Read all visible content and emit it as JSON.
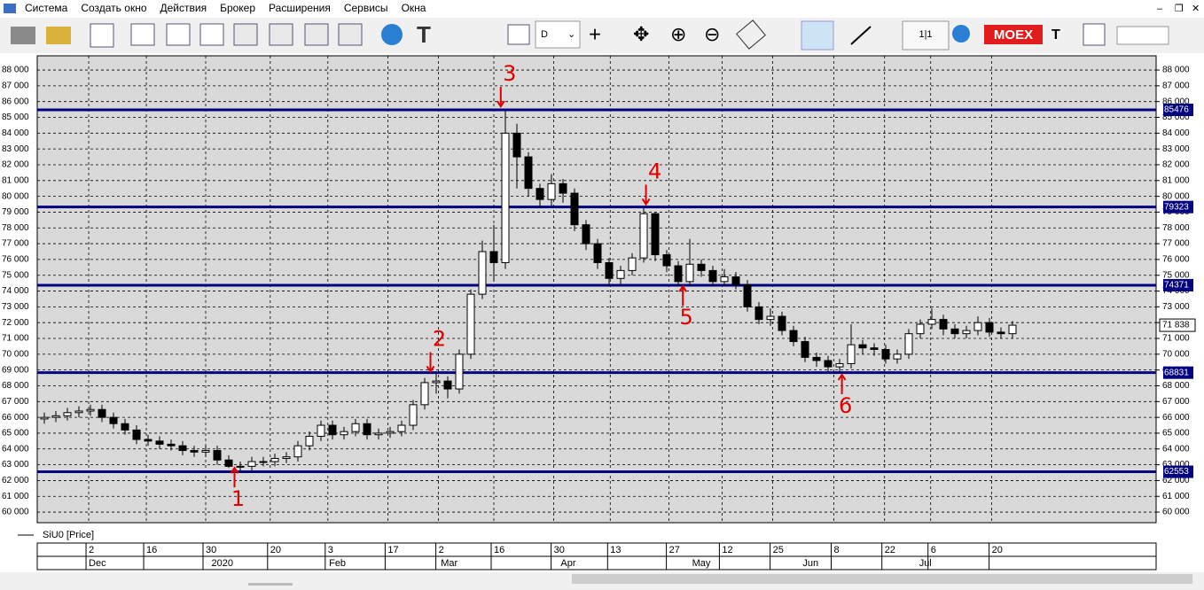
{
  "menu": [
    "Система",
    "Создать окно",
    "Действия",
    "Брокер",
    "Расширения",
    "Сервисы",
    "Окна"
  ],
  "toolbar": {
    "interval": "D",
    "window_count": "1|1",
    "exchange": "MOEX",
    "tail": "T"
  },
  "chart_data": {
    "type": "candlestick",
    "legend": "SiU0 [Price]",
    "open": [
      65900,
      66000,
      66100,
      66300,
      66400,
      66500,
      66000,
      65600,
      65200,
      64600,
      64500,
      64300,
      64200,
      63900,
      63800,
      63900,
      63300,
      62900,
      62900,
      63200,
      63200,
      63400,
      63500,
      64200,
      64800,
      65500,
      64900,
      65100,
      65600,
      64900,
      65000,
      65100,
      65500,
      66800,
      68200,
      68300,
      67800,
      70000,
      73800,
      76500,
      75800,
      84000,
      82500,
      80500,
      79800,
      80800,
      80200,
      78200,
      77000,
      75800,
      74800,
      75300,
      76100,
      78900,
      76300,
      75600,
      74600,
      75700,
      75300,
      74600,
      74900,
      74400,
      73000,
      72200,
      72400,
      71500,
      70800,
      69800,
      69600,
      69200,
      69400,
      70600,
      70400,
      70300,
      69700,
      70000,
      71300,
      71900,
      72200,
      71600,
      71300,
      71500,
      72000,
      71400,
      71300
    ],
    "high": [
      66300,
      66400,
      66600,
      66700,
      66800,
      66800,
      66300,
      65900,
      65500,
      64900,
      64800,
      64600,
      64500,
      64200,
      64200,
      64200,
      63600,
      63200,
      63500,
      63500,
      63700,
      63800,
      64500,
      65100,
      65800,
      65800,
      65400,
      65900,
      65900,
      65300,
      65400,
      65800,
      67100,
      68500,
      68800,
      68600,
      70300,
      74100,
      77200,
      78200,
      85400,
      84600,
      82800,
      80800,
      81400,
      81100,
      80500,
      78500,
      77300,
      76100,
      75600,
      76400,
      79300,
      79000,
      76600,
      75900,
      77300,
      76000,
      75600,
      75400,
      75200,
      74700,
      73300,
      72900,
      72700,
      71800,
      71100,
      70100,
      69900,
      69700,
      71900,
      70900,
      70700,
      70600,
      70300,
      71600,
      72200,
      72900,
      72500,
      71900,
      71800,
      72400,
      72300,
      71700,
      72100
    ],
    "low": [
      65600,
      65700,
      65800,
      66000,
      66100,
      65700,
      65300,
      64900,
      64300,
      64200,
      64000,
      63900,
      63600,
      63500,
      63500,
      63000,
      62800,
      62600,
      62600,
      62900,
      62900,
      63100,
      63200,
      63900,
      64500,
      64600,
      64600,
      64800,
      64600,
      64600,
      64700,
      64800,
      65200,
      66500,
      67500,
      67200,
      67500,
      69700,
      73500,
      74600,
      75400,
      80500,
      80000,
      79300,
      79400,
      79600,
      77800,
      76600,
      75400,
      74300,
      74400,
      75000,
      75800,
      75900,
      75200,
      74300,
      74300,
      74900,
      74300,
      74300,
      74100,
      72700,
      71900,
      71800,
      71200,
      70500,
      69500,
      69200,
      68900,
      68900,
      69100,
      70000,
      69900,
      69400,
      69400,
      69700,
      71000,
      71600,
      71200,
      71000,
      71000,
      71200,
      71100,
      71000,
      71000
    ],
    "close": [
      66000,
      66100,
      66300,
      66400,
      66500,
      66000,
      65600,
      65200,
      64600,
      64500,
      64300,
      64200,
      63900,
      63800,
      63900,
      63300,
      62900,
      62900,
      63200,
      63200,
      63400,
      63500,
      64200,
      64800,
      65500,
      64900,
      65100,
      65600,
      64900,
      65000,
      65100,
      65500,
      66800,
      68200,
      68300,
      67800,
      70000,
      73800,
      76500,
      75800,
      84000,
      82500,
      80500,
      79800,
      80800,
      80200,
      78200,
      77000,
      75800,
      74800,
      75300,
      76100,
      78900,
      76300,
      75600,
      74600,
      75700,
      75300,
      74600,
      74900,
      74400,
      73000,
      72200,
      72400,
      71500,
      70800,
      69800,
      69600,
      69200,
      69400,
      70600,
      70400,
      70300,
      69700,
      70000,
      71300,
      71900,
      72200,
      71600,
      71300,
      71500,
      72000,
      71400,
      71300,
      71838
    ],
    "ylim": [
      59330,
      88900
    ],
    "yticks": [
      {
        "value": 60000,
        "label": "60 000"
      },
      {
        "value": 61000,
        "label": "61 000"
      },
      {
        "value": 62000,
        "label": "62 000"
      },
      {
        "value": 63000,
        "label": "63 000"
      },
      {
        "value": 64000,
        "label": "64 000"
      },
      {
        "value": 65000,
        "label": "65 000"
      },
      {
        "value": 66000,
        "label": "66 000"
      },
      {
        "value": 67000,
        "label": "67 000"
      },
      {
        "value": 68000,
        "label": "68 000"
      },
      {
        "value": 69000,
        "label": "69 000"
      },
      {
        "value": 70000,
        "label": "70 000"
      },
      {
        "value": 71000,
        "label": "71 000"
      },
      {
        "value": 72000,
        "label": "72 000"
      },
      {
        "value": 73000,
        "label": "73 000"
      },
      {
        "value": 74000,
        "label": "74 000"
      },
      {
        "value": 75000,
        "label": "75 000"
      },
      {
        "value": 76000,
        "label": "76 000"
      },
      {
        "value": 77000,
        "label": "77 000"
      },
      {
        "value": 78000,
        "label": "78 000"
      },
      {
        "value": 79000,
        "label": "79 000"
      },
      {
        "value": 80000,
        "label": "80 000"
      },
      {
        "value": 81000,
        "label": "81 000"
      },
      {
        "value": 82000,
        "label": "82 000"
      },
      {
        "value": 83000,
        "label": "83 000"
      },
      {
        "value": 84000,
        "label": "84 000"
      },
      {
        "value": 85000,
        "label": "85 000"
      },
      {
        "value": 86000,
        "label": "86 000"
      },
      {
        "value": 87000,
        "label": "87 000"
      },
      {
        "value": 88000,
        "label": "88 000"
      }
    ],
    "xticks": [
      {
        "value": 3.85,
        "label": "2"
      },
      {
        "value": 8.85,
        "label": "16"
      },
      {
        "value": 14,
        "label": "30"
      },
      {
        "value": 19.6,
        "label": "20"
      },
      {
        "value": 24.6,
        "label": "3"
      },
      {
        "value": 29.8,
        "label": "17"
      },
      {
        "value": 34.2,
        "label": "2"
      },
      {
        "value": 39,
        "label": "16"
      },
      {
        "value": 44.2,
        "label": "30"
      },
      {
        "value": 49.1,
        "label": "13"
      },
      {
        "value": 54.2,
        "label": "27"
      },
      {
        "value": 58.8,
        "label": "12"
      },
      {
        "value": 63.2,
        "label": "25"
      },
      {
        "value": 68.5,
        "label": "8"
      },
      {
        "value": 72.9,
        "label": "22"
      },
      {
        "value": 76.9,
        "label": "6"
      },
      {
        "value": 82.2,
        "label": "20"
      }
    ],
    "month_ticks": [
      {
        "value": 3.85,
        "label": "Dec"
      },
      {
        "value": 14.5,
        "label": "2020"
      },
      {
        "value": 24.7,
        "label": "Feb"
      },
      {
        "value": 34.4,
        "label": "Mar"
      },
      {
        "value": 44.8,
        "label": "Apr"
      },
      {
        "value": 56.2,
        "label": "May"
      },
      {
        "value": 65.8,
        "label": "Jun"
      },
      {
        "value": 75.9,
        "label": "Jul"
      }
    ],
    "levels": [
      85476,
      79323,
      74371,
      68831,
      62553
    ],
    "level_color": "#000080",
    "last_price": {
      "value": 71838,
      "label": "71 838"
    },
    "grid": true,
    "annotations": [
      {
        "text": "1",
        "x": 16.5,
        "y": 62800,
        "direction": "up"
      },
      {
        "text": "2",
        "x": 33.5,
        "y": 68900,
        "direction": "down"
      },
      {
        "text": "3",
        "x": 39.6,
        "y": 85700,
        "direction": "down"
      },
      {
        "text": "4",
        "x": 52.2,
        "y": 79500,
        "direction": "down"
      },
      {
        "text": "5",
        "x": 55.4,
        "y": 74300,
        "direction": "up"
      },
      {
        "text": "6",
        "x": 69.2,
        "y": 68700,
        "direction": "up"
      }
    ],
    "annotation_color": "#e00000"
  }
}
